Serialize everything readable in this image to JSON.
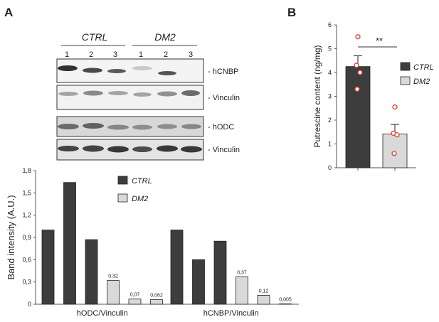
{
  "panel_a": {
    "label": "A",
    "groups": [
      {
        "name": "CTRL",
        "lanes": [
          "1",
          "2",
          "3"
        ]
      },
      {
        "name": "DM2",
        "lanes": [
          "1",
          "2",
          "3"
        ]
      }
    ],
    "blots": [
      {
        "label": "- hCNBP"
      },
      {
        "label": "- Vinculin"
      },
      {
        "label": "- hODC"
      },
      {
        "label": "- Vinculin"
      }
    ]
  },
  "panel_b": {
    "label": "B",
    "significance": "**"
  },
  "chart_data": [
    {
      "type": "bar",
      "ylabel": "Band intensity  (A.U.)",
      "ylim": [
        0,
        1.8
      ],
      "yticks": [
        "0",
        "0,3",
        "0,6",
        "0,9",
        "1,2",
        "1,5",
        "1,8"
      ],
      "categories": [
        "hODC/Vinculin",
        "hCNBP/Vinculin"
      ],
      "legend": {
        "placement": "top-center",
        "entries": [
          "CTRL",
          "DM2"
        ]
      },
      "series": [
        {
          "name": "CTRL",
          "color": "#3d3d3d",
          "values": [
            [
              1.0,
              1.64,
              0.87
            ],
            [
              1.0,
              0.6,
              0.85
            ]
          ]
        },
        {
          "name": "DM2",
          "color": "#d9d9d9",
          "values": [
            [
              0.32,
              0.07,
              0.062
            ],
            [
              0.37,
              0.12,
              0.005
            ]
          ],
          "data_labels": [
            [
              "0,32",
              "0,07",
              "0,062"
            ],
            [
              "0,37",
              "0,12",
              "0,005"
            ]
          ]
        }
      ]
    },
    {
      "type": "bar",
      "ylabel": "Putrescine content (ng/mg)",
      "ylim": [
        0,
        6
      ],
      "yticks": [
        "0",
        "1",
        "2",
        "3",
        "4",
        "5",
        "6"
      ],
      "legend": {
        "placement": "right",
        "entries": [
          "CTRL",
          "DM2"
        ]
      },
      "series": [
        {
          "name": "CTRL",
          "color": "#3d3d3d",
          "mean": 4.25,
          "sem": 0.45,
          "points": [
            5.5,
            4.3,
            4.0,
            3.3
          ]
        },
        {
          "name": "DM2",
          "color": "#d9d9d9",
          "mean": 1.42,
          "sem": 0.4,
          "points": [
            2.55,
            1.45,
            1.38,
            0.6
          ]
        }
      ]
    }
  ]
}
